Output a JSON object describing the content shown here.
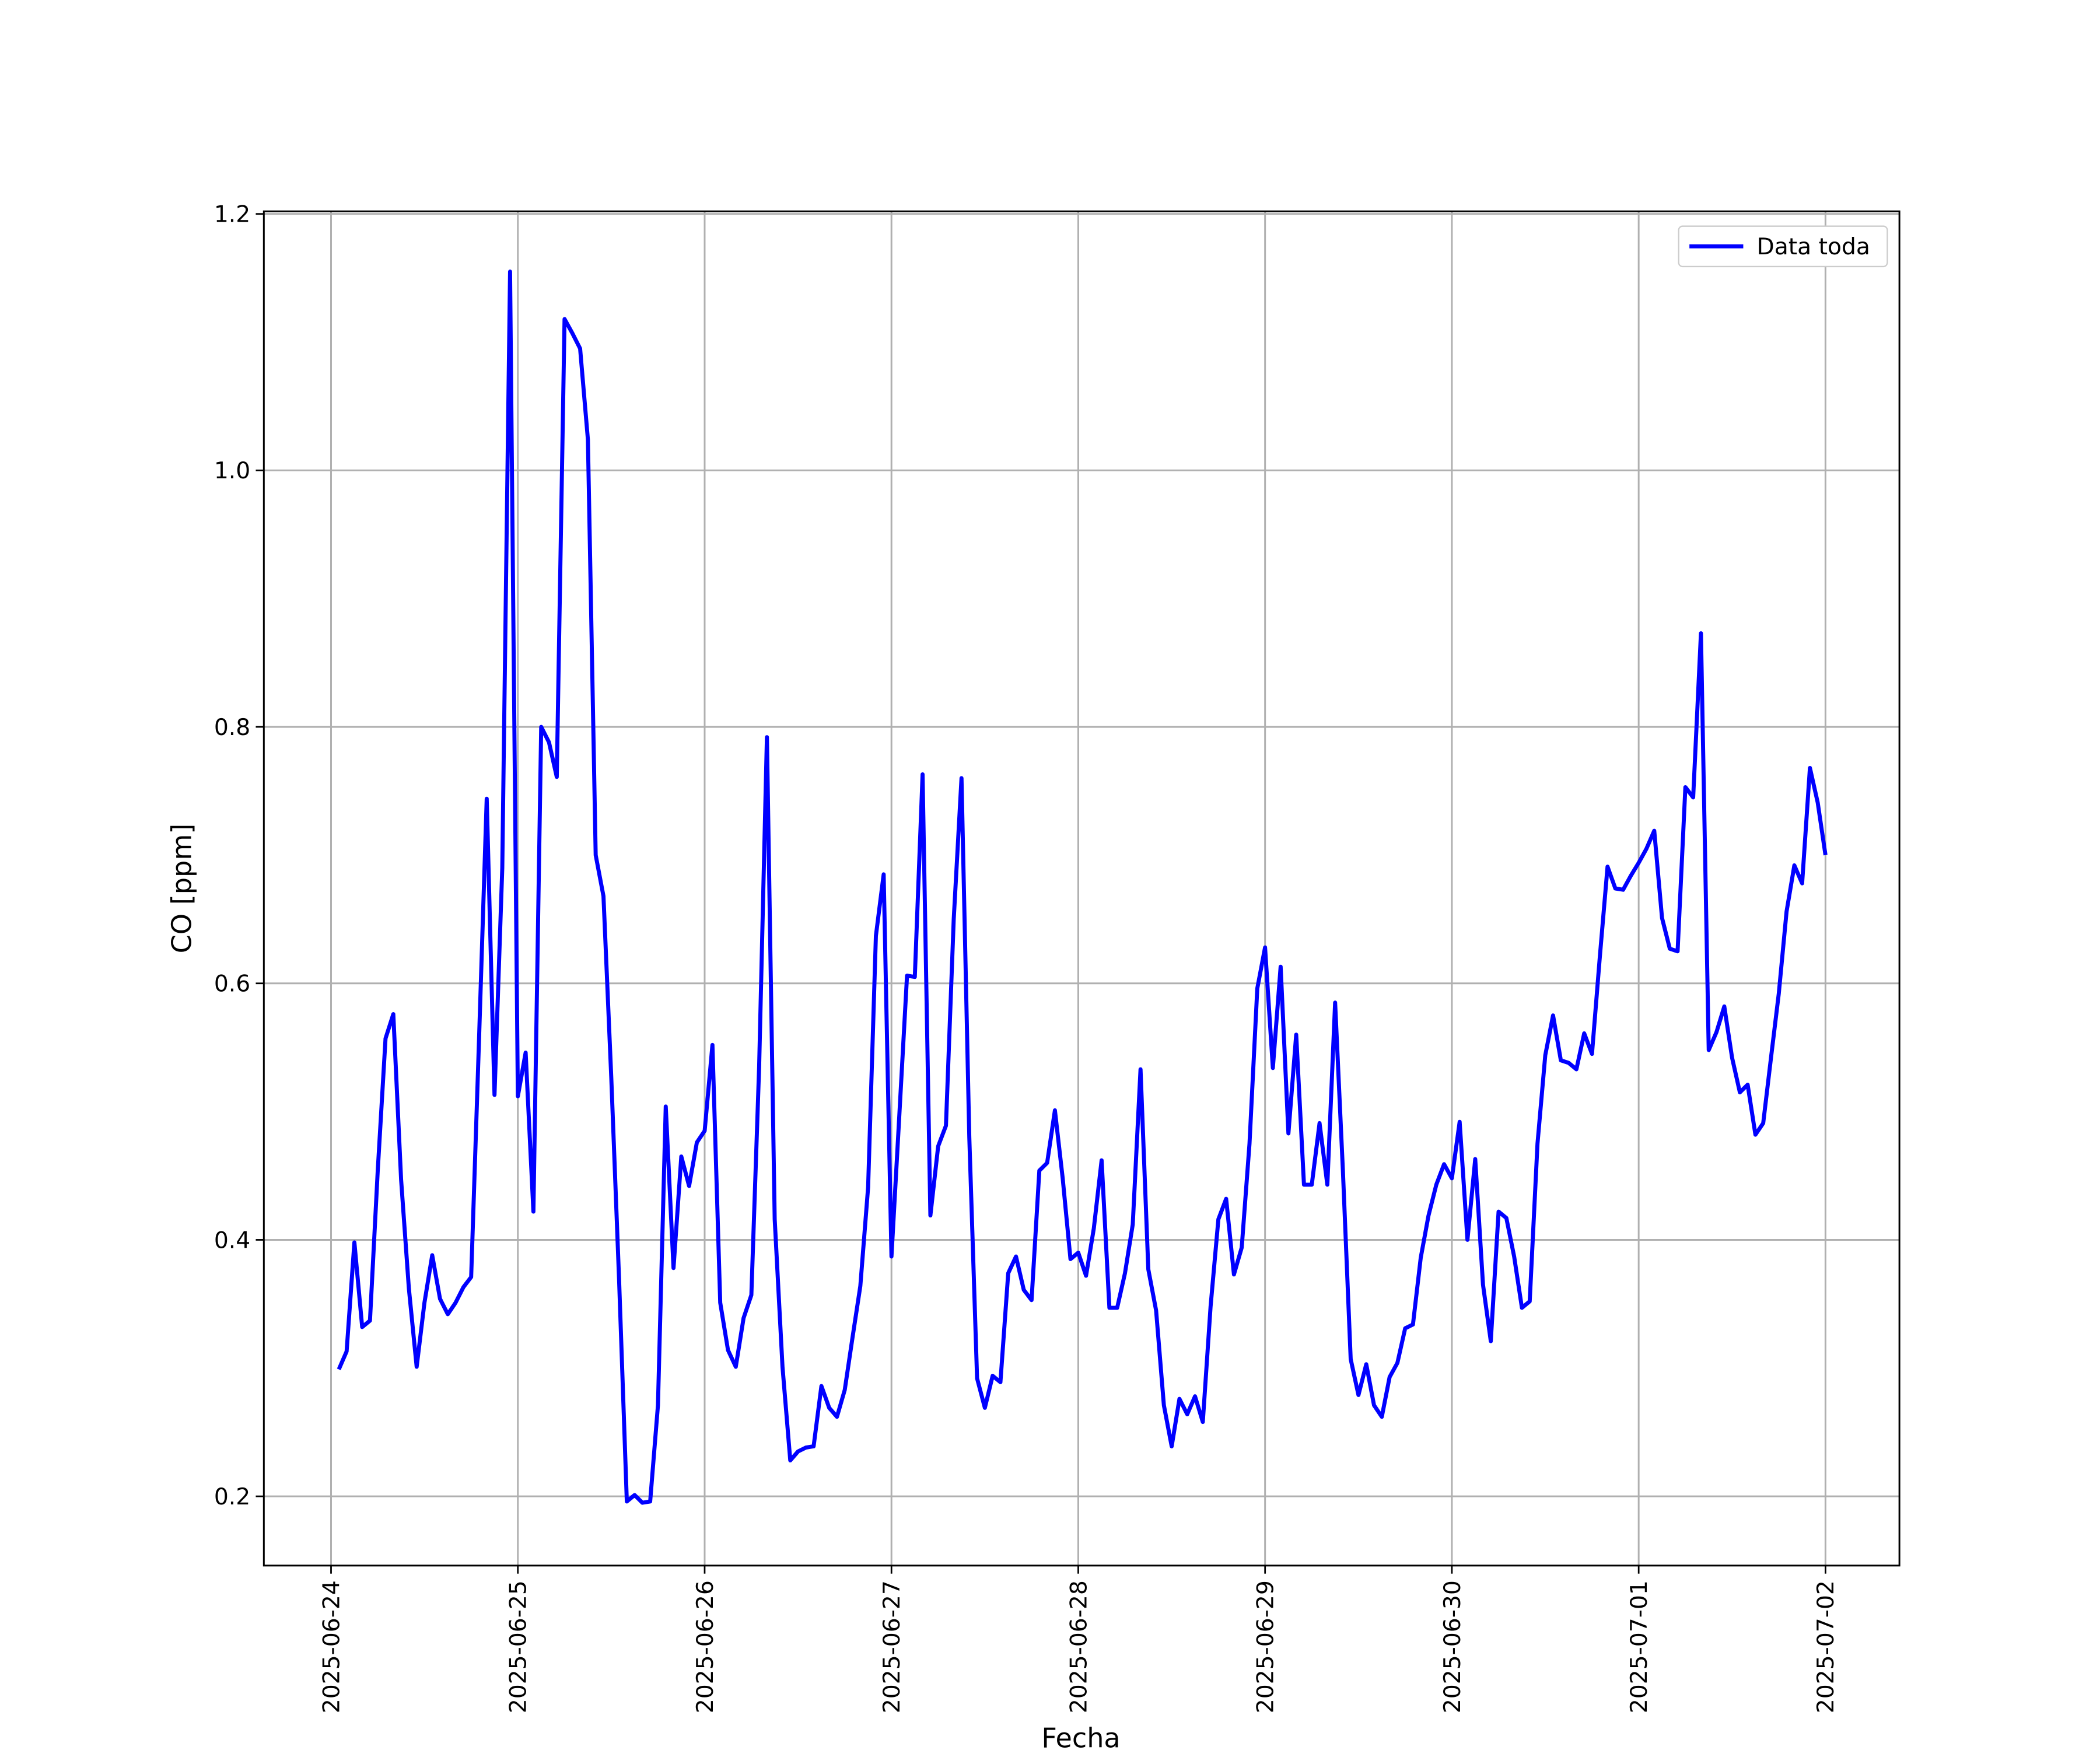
{
  "chart_data": {
    "type": "line",
    "xlabel": "Fecha",
    "ylabel": "CO [ppm]",
    "x": [
      "2025-06-24 01:00",
      "2025-06-24 02:00",
      "2025-06-24 03:00",
      "2025-06-24 04:00",
      "2025-06-24 05:00",
      "2025-06-24 06:00",
      "2025-06-24 07:00",
      "2025-06-24 08:00",
      "2025-06-24 09:00",
      "2025-06-24 10:00",
      "2025-06-24 11:00",
      "2025-06-24 12:00",
      "2025-06-24 13:00",
      "2025-06-24 14:00",
      "2025-06-24 15:00",
      "2025-06-24 16:00",
      "2025-06-24 17:00",
      "2025-06-24 18:00",
      "2025-06-24 19:00",
      "2025-06-24 20:00",
      "2025-06-24 21:00",
      "2025-06-24 22:00",
      "2025-06-24 23:00",
      "2025-06-25 00:00",
      "2025-06-25 01:00",
      "2025-06-25 02:00",
      "2025-06-25 03:00",
      "2025-06-25 04:00",
      "2025-06-25 05:00",
      "2025-06-25 06:00",
      "2025-06-25 07:00",
      "2025-06-25 08:00",
      "2025-06-25 09:00",
      "2025-06-25 10:00",
      "2025-06-25 11:00",
      "2025-06-25 12:00",
      "2025-06-25 13:00",
      "2025-06-25 14:00",
      "2025-06-25 15:00",
      "2025-06-25 16:00",
      "2025-06-25 17:00",
      "2025-06-25 18:00",
      "2025-06-25 19:00",
      "2025-06-25 20:00",
      "2025-06-25 21:00",
      "2025-06-25 22:00",
      "2025-06-25 23:00",
      "2025-06-26 00:00",
      "2025-06-26 01:00",
      "2025-06-26 02:00",
      "2025-06-26 03:00",
      "2025-06-26 04:00",
      "2025-06-26 05:00",
      "2025-06-26 06:00",
      "2025-06-26 07:00",
      "2025-06-26 08:00",
      "2025-06-26 09:00",
      "2025-06-26 10:00",
      "2025-06-26 11:00",
      "2025-06-26 12:00",
      "2025-06-26 13:00",
      "2025-06-26 14:00",
      "2025-06-26 15:00",
      "2025-06-26 16:00",
      "2025-06-26 17:00",
      "2025-06-26 18:00",
      "2025-06-26 19:00",
      "2025-06-26 20:00",
      "2025-06-26 21:00",
      "2025-06-26 22:00",
      "2025-06-26 23:00",
      "2025-06-27 00:00",
      "2025-06-27 01:00",
      "2025-06-27 02:00",
      "2025-06-27 03:00",
      "2025-06-27 04:00",
      "2025-06-27 05:00",
      "2025-06-27 06:00",
      "2025-06-27 07:00",
      "2025-06-27 08:00",
      "2025-06-27 09:00",
      "2025-06-27 10:00",
      "2025-06-27 11:00",
      "2025-06-27 12:00",
      "2025-06-27 13:00",
      "2025-06-27 14:00",
      "2025-06-27 15:00",
      "2025-06-27 16:00",
      "2025-06-27 17:00",
      "2025-06-27 18:00",
      "2025-06-27 19:00",
      "2025-06-27 20:00",
      "2025-06-27 21:00",
      "2025-06-27 22:00",
      "2025-06-27 23:00",
      "2025-06-28 00:00",
      "2025-06-28 01:00",
      "2025-06-28 02:00",
      "2025-06-28 03:00",
      "2025-06-28 04:00",
      "2025-06-28 05:00",
      "2025-06-28 06:00",
      "2025-06-28 07:00",
      "2025-06-28 08:00",
      "2025-06-28 09:00",
      "2025-06-28 10:00",
      "2025-06-28 11:00",
      "2025-06-28 12:00",
      "2025-06-28 13:00",
      "2025-06-28 14:00",
      "2025-06-28 15:00",
      "2025-06-28 16:00",
      "2025-06-28 17:00",
      "2025-06-28 18:00",
      "2025-06-28 19:00",
      "2025-06-28 20:00",
      "2025-06-28 21:00",
      "2025-06-28 22:00",
      "2025-06-28 23:00",
      "2025-06-29 00:00",
      "2025-06-29 01:00",
      "2025-06-29 02:00",
      "2025-06-29 03:00",
      "2025-06-29 04:00",
      "2025-06-29 05:00",
      "2025-06-29 06:00",
      "2025-06-29 07:00",
      "2025-06-29 08:00",
      "2025-06-29 09:00",
      "2025-06-29 10:00",
      "2025-06-29 11:00",
      "2025-06-29 12:00",
      "2025-06-29 13:00",
      "2025-06-29 14:00",
      "2025-06-29 15:00",
      "2025-06-29 16:00",
      "2025-06-29 17:00",
      "2025-06-29 18:00",
      "2025-06-29 19:00",
      "2025-06-29 20:00",
      "2025-06-29 21:00",
      "2025-06-29 22:00",
      "2025-06-29 23:00",
      "2025-06-30 00:00",
      "2025-06-30 01:00",
      "2025-06-30 02:00",
      "2025-06-30 03:00",
      "2025-06-30 04:00",
      "2025-06-30 05:00",
      "2025-06-30 06:00",
      "2025-06-30 07:00",
      "2025-06-30 08:00",
      "2025-06-30 09:00",
      "2025-06-30 10:00",
      "2025-06-30 11:00",
      "2025-06-30 12:00",
      "2025-06-30 13:00",
      "2025-06-30 14:00",
      "2025-06-30 15:00",
      "2025-06-30 16:00",
      "2025-06-30 17:00",
      "2025-06-30 18:00",
      "2025-06-30 19:00",
      "2025-06-30 20:00",
      "2025-06-30 21:00",
      "2025-06-30 22:00",
      "2025-06-30 23:00",
      "2025-07-01 00:00",
      "2025-07-01 01:00",
      "2025-07-01 02:00",
      "2025-07-01 03:00",
      "2025-07-01 04:00",
      "2025-07-01 05:00",
      "2025-07-01 06:00",
      "2025-07-01 07:00",
      "2025-07-01 08:00",
      "2025-07-01 09:00",
      "2025-07-01 10:00",
      "2025-07-01 11:00",
      "2025-07-01 12:00",
      "2025-07-01 13:00",
      "2025-07-01 14:00",
      "2025-07-01 15:00",
      "2025-07-01 16:00",
      "2025-07-01 17:00",
      "2025-07-01 18:00",
      "2025-07-01 19:00",
      "2025-07-01 20:00",
      "2025-07-01 21:00",
      "2025-07-01 22:00",
      "2025-07-01 23:00",
      "2025-07-02 00:00"
    ],
    "series": [
      {
        "name": "Data toda",
        "color": "#0000ff",
        "values": [
          0.299,
          0.313,
          0.398,
          0.332,
          0.337,
          0.454,
          0.557,
          0.576,
          0.447,
          0.362,
          0.301,
          0.351,
          0.388,
          0.354,
          0.342,
          0.351,
          0.363,
          0.371,
          0.554,
          0.744,
          0.513,
          0.69,
          1.155,
          0.512,
          0.546,
          0.422,
          0.8,
          0.788,
          0.761,
          1.118,
          1.107,
          1.095,
          1.024,
          0.7,
          0.668,
          0.527,
          0.37,
          0.196,
          0.201,
          0.195,
          0.196,
          0.271,
          0.504,
          0.378,
          0.465,
          0.442,
          0.476,
          0.485,
          0.552,
          0.351,
          0.314,
          0.301,
          0.339,
          0.357,
          0.535,
          0.792,
          0.416,
          0.301,
          0.228,
          0.235,
          0.238,
          0.239,
          0.286,
          0.269,
          0.262,
          0.283,
          0.324,
          0.364,
          0.441,
          0.637,
          0.685,
          0.387,
          0.496,
          0.606,
          0.605,
          0.763,
          0.419,
          0.473,
          0.489,
          0.65,
          0.76,
          0.48,
          0.292,
          0.269,
          0.294,
          0.289,
          0.374,
          0.387,
          0.361,
          0.353,
          0.454,
          0.46,
          0.501,
          0.448,
          0.385,
          0.39,
          0.372,
          0.409,
          0.462,
          0.347,
          0.347,
          0.374,
          0.412,
          0.533,
          0.377,
          0.345,
          0.271,
          0.239,
          0.276,
          0.264,
          0.278,
          0.258,
          0.348,
          0.416,
          0.432,
          0.373,
          0.394,
          0.475,
          0.596,
          0.628,
          0.534,
          0.613,
          0.483,
          0.56,
          0.443,
          0.443,
          0.491,
          0.443,
          0.585,
          0.454,
          0.307,
          0.279,
          0.303,
          0.271,
          0.262,
          0.293,
          0.304,
          0.331,
          0.334,
          0.386,
          0.419,
          0.443,
          0.459,
          0.448,
          0.492,
          0.4,
          0.463,
          0.365,
          0.321,
          0.422,
          0.417,
          0.387,
          0.347,
          0.352,
          0.475,
          0.544,
          0.575,
          0.54,
          0.538,
          0.533,
          0.561,
          0.545,
          0.62,
          0.691,
          0.674,
          0.673,
          0.684,
          0.694,
          0.705,
          0.719,
          0.651,
          0.627,
          0.625,
          0.753,
          0.745,
          0.873,
          0.548,
          0.562,
          0.582,
          0.542,
          0.515,
          0.521,
          0.482,
          0.491,
          0.542,
          0.592,
          0.656,
          0.692,
          0.678,
          0.768,
          0.741,
          0.7
        ]
      }
    ],
    "xlim": [
      "2025-06-23 15:22",
      "2025-07-02 09:30"
    ],
    "xticks": [
      "2025-06-24",
      "2025-06-25",
      "2025-06-26",
      "2025-06-27",
      "2025-06-28",
      "2025-06-29",
      "2025-06-30",
      "2025-07-01",
      "2025-07-02"
    ],
    "ylim": [
      0.146,
      1.202
    ],
    "yticks": [
      {
        "value": 0.2,
        "label": "0.2"
      },
      {
        "value": 0.4,
        "label": "0.4"
      },
      {
        "value": 0.6,
        "label": "0.6"
      },
      {
        "value": 0.8,
        "label": "0.8"
      },
      {
        "value": 1.0,
        "label": "1.0"
      },
      {
        "value": 1.2,
        "label": "1.2"
      }
    ],
    "grid": true,
    "legend": "upper right"
  }
}
